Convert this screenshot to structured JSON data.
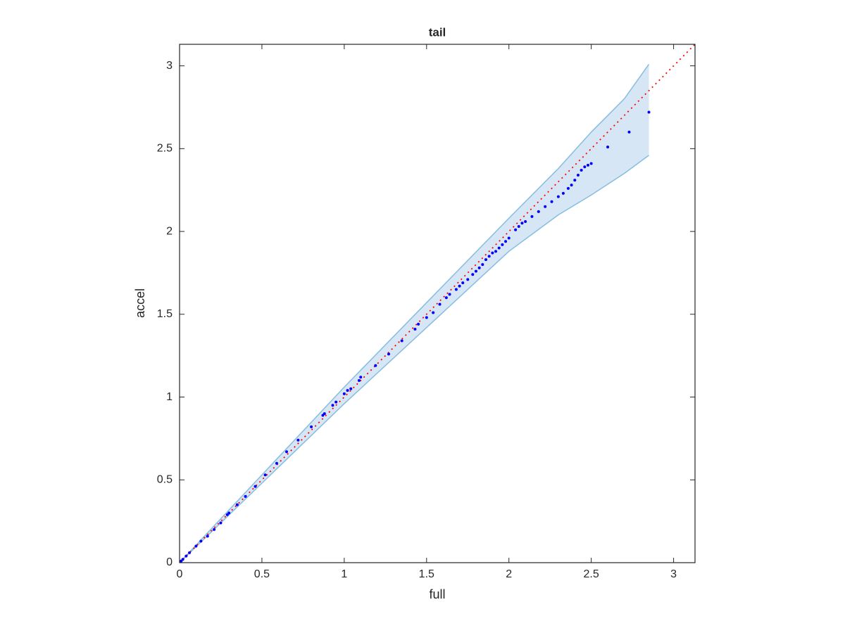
{
  "chart_data": {
    "type": "scatter",
    "title": "tail",
    "xlabel": "full",
    "ylabel": "accel",
    "xlim": [
      0,
      3.13
    ],
    "ylim": [
      0,
      3.13
    ],
    "xticks": [
      0,
      0.5,
      1,
      1.5,
      2,
      2.5,
      3
    ],
    "yticks": [
      0,
      0.5,
      1,
      1.5,
      2,
      2.5,
      3
    ],
    "grid": false,
    "x": [
      0.01,
      0.02,
      0.04,
      0.06,
      0.1,
      0.13,
      0.17,
      0.21,
      0.25,
      0.29,
      0.3,
      0.35,
      0.4,
      0.46,
      0.52,
      0.59,
      0.65,
      0.72,
      0.8,
      0.87,
      0.88,
      0.93,
      0.95,
      1.0,
      1.02,
      1.04,
      1.09,
      1.1,
      1.19,
      1.27,
      1.35,
      1.43,
      1.45,
      1.5,
      1.54,
      1.58,
      1.62,
      1.64,
      1.68,
      1.7,
      1.72,
      1.75,
      1.78,
      1.8,
      1.82,
      1.84,
      1.86,
      1.88,
      1.9,
      1.92,
      1.94,
      1.96,
      1.98,
      2.0,
      2.04,
      2.06,
      2.08,
      2.1,
      2.14,
      2.18,
      2.22,
      2.26,
      2.3,
      2.33,
      2.36,
      2.38,
      2.4,
      2.42,
      2.44,
      2.46,
      2.48,
      2.5,
      2.6,
      2.73,
      2.85
    ],
    "series": [
      {
        "color": "#0000ff",
        "values": [
          0.01,
          0.02,
          0.04,
          0.06,
          0.1,
          0.13,
          0.16,
          0.2,
          0.24,
          0.29,
          0.3,
          0.35,
          0.4,
          0.46,
          0.53,
          0.6,
          0.67,
          0.74,
          0.82,
          0.89,
          0.9,
          0.95,
          0.97,
          1.02,
          1.04,
          1.05,
          1.1,
          1.12,
          1.19,
          1.26,
          1.34,
          1.41,
          1.44,
          1.48,
          1.51,
          1.56,
          1.6,
          1.62,
          1.65,
          1.67,
          1.69,
          1.71,
          1.74,
          1.76,
          1.78,
          1.8,
          1.83,
          1.85,
          1.87,
          1.88,
          1.9,
          1.92,
          1.94,
          1.96,
          2.01,
          2.03,
          2.05,
          2.06,
          2.09,
          2.12,
          2.15,
          2.18,
          2.21,
          2.23,
          2.26,
          2.28,
          2.31,
          2.34,
          2.37,
          2.39,
          2.4,
          2.41,
          2.51,
          2.6,
          2.72
        ]
      }
    ],
    "band": {
      "x": [
        0,
        0.5,
        1,
        1.5,
        2,
        2.3,
        2.5,
        2.7,
        2.85
      ],
      "upper": [
        0,
        0.53,
        1.06,
        1.57,
        2.08,
        2.38,
        2.6,
        2.8,
        3.01
      ],
      "lower": [
        0,
        0.48,
        0.96,
        1.42,
        1.88,
        2.1,
        2.22,
        2.35,
        2.46
      ],
      "color": "#d6e6f4",
      "edge_color": "#86bde0"
    },
    "reference": {
      "x": [
        0,
        3.13
      ],
      "values": [
        0,
        3.13
      ],
      "color": "#ff0000"
    }
  }
}
